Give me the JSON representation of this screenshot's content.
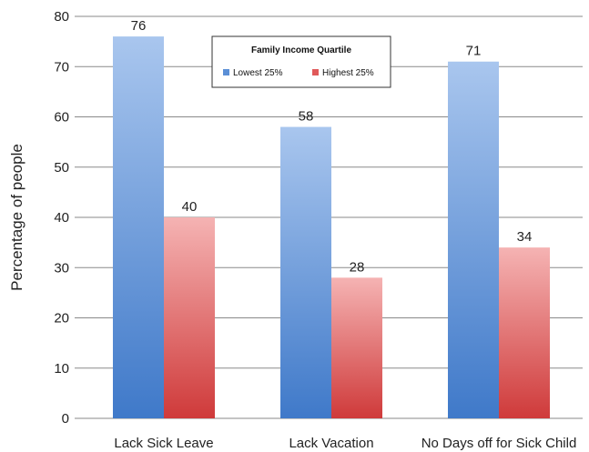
{
  "chart_data": {
    "type": "bar",
    "categories": [
      "Lack Sick Leave",
      "Lack Vacation",
      "No Days off for Sick Child"
    ],
    "series": [
      {
        "name": "Lowest 25%",
        "values": [
          76,
          58,
          71
        ],
        "color": "#5b8fd6"
      },
      {
        "name": "Highest 25%",
        "values": [
          40,
          28,
          34
        ],
        "color": "#e0595a"
      }
    ],
    "title": "",
    "xlabel": "",
    "ylabel": "Percentage of people",
    "ylim": [
      0,
      80
    ],
    "yticks": [
      0,
      10,
      20,
      30,
      40,
      50,
      60,
      70,
      80
    ],
    "grid": true,
    "legend": {
      "title": "Family Income Quartile",
      "placement": "top-center"
    }
  }
}
